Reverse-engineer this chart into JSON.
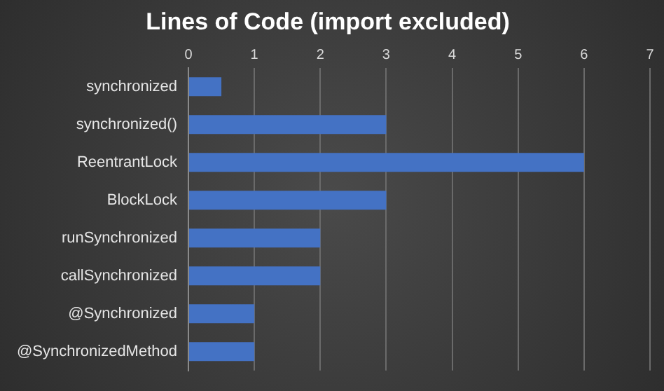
{
  "chart_data": {
    "type": "bar",
    "orientation": "horizontal",
    "title": "Lines of Code (import excluded)",
    "categories": [
      "synchronized",
      "synchronized()",
      "ReentrantLock",
      "BlockLock",
      "runSynchronized",
      "callSynchronized",
      "@Synchronized",
      "@SynchronizedMethod"
    ],
    "values": [
      0.5,
      3,
      6,
      3,
      2,
      2,
      1,
      1
    ],
    "color": "#4472c4",
    "xlim": [
      0,
      7
    ],
    "xticks": [
      0,
      1,
      2,
      3,
      4,
      5,
      6,
      7
    ],
    "grid": "x",
    "legend": false
  }
}
